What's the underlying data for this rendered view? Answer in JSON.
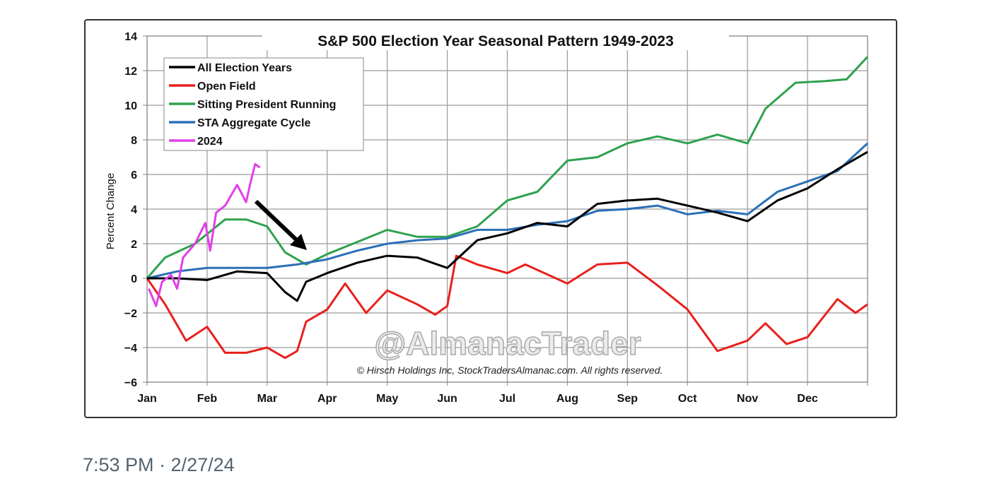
{
  "tweet": {
    "timestamp": "7:53 PM · 2/27/24"
  },
  "chart_data": {
    "type": "line",
    "title": "S&P 500 Election Year Seasonal Pattern 1949-2023",
    "xlabel": "",
    "ylabel": "Percent Change",
    "ylim": [
      -6,
      14
    ],
    "yticks": [
      "14",
      "12",
      "10",
      "8",
      "6",
      "4",
      "2",
      "0",
      "−2",
      "−4",
      "−6"
    ],
    "ytick_values": [
      14,
      12,
      10,
      8,
      6,
      4,
      2,
      0,
      -2,
      -4,
      -6
    ],
    "xlim": [
      0,
      12
    ],
    "xticks": [
      "Jan",
      "Feb",
      "Mar",
      "Apr",
      "May",
      "Jun",
      "Jul",
      "Aug",
      "Sep",
      "Oct",
      "Nov",
      "Dec"
    ],
    "grid": true,
    "legend_position": "top-left",
    "watermark": "@AlmanacTrader",
    "copyright": "© Hirsch Holdings Inc, StockTradersAlmanac.com. All rights reserved.",
    "series": [
      {
        "name": "All Election Years",
        "color": "#000000",
        "x": [
          0,
          0.5,
          1,
          1.5,
          2,
          2.3,
          2.5,
          2.65,
          3,
          3.5,
          4,
          4.5,
          5,
          5.5,
          6,
          6.5,
          7,
          7.5,
          8,
          8.5,
          9,
          9.5,
          10,
          10.5,
          11,
          11.5,
          12
        ],
        "y": [
          0,
          0,
          -0.1,
          0.4,
          0.3,
          -0.8,
          -1.3,
          -0.2,
          0.3,
          0.9,
          1.3,
          1.2,
          0.6,
          2.2,
          2.6,
          3.2,
          3.0,
          4.3,
          4.5,
          4.6,
          4.2,
          3.8,
          3.3,
          4.5,
          5.2,
          6.3,
          7.3
        ]
      },
      {
        "name": "Open Field",
        "color": "#e8201c",
        "x": [
          0,
          0.3,
          0.65,
          1,
          1.3,
          1.65,
          2,
          2.3,
          2.5,
          2.65,
          3,
          3.3,
          3.65,
          4,
          4.5,
          4.8,
          5,
          5.15,
          5.5,
          6,
          6.3,
          7,
          7.5,
          8,
          8.5,
          9,
          9.5,
          10,
          10.3,
          10.65,
          11,
          11.5,
          11.8,
          12
        ],
        "y": [
          0,
          -1.5,
          -3.6,
          -2.8,
          -4.3,
          -4.3,
          -4.0,
          -4.6,
          -4.2,
          -2.5,
          -1.8,
          -0.3,
          -2.0,
          -0.7,
          -1.5,
          -2.1,
          -1.6,
          1.3,
          0.8,
          0.3,
          0.8,
          -0.3,
          0.8,
          0.9,
          -0.4,
          -1.8,
          -4.2,
          -3.6,
          -2.6,
          -3.8,
          -3.4,
          -1.2,
          -2.0,
          -1.5
        ]
      },
      {
        "name": "Sitting President Running",
        "color": "#2ea24e",
        "x": [
          0,
          0.3,
          0.8,
          1.3,
          1.65,
          2,
          2.3,
          2.65,
          3,
          3.5,
          4,
          4.5,
          5,
          5.5,
          6,
          6.5,
          7,
          7.5,
          8,
          8.5,
          9,
          9.5,
          10,
          10.3,
          10.8,
          11.3,
          11.65,
          12
        ],
        "y": [
          0,
          1.2,
          2.0,
          3.4,
          3.4,
          3.0,
          1.5,
          0.8,
          1.4,
          2.1,
          2.8,
          2.4,
          2.4,
          3.0,
          4.5,
          5.0,
          6.8,
          7.0,
          7.8,
          8.2,
          7.8,
          8.3,
          7.8,
          9.8,
          11.3,
          11.4,
          11.5,
          12.8
        ]
      },
      {
        "name": "STA Aggregate Cycle",
        "color": "#2b70b8",
        "x": [
          0,
          0.5,
          1,
          1.5,
          2,
          2.5,
          3,
          3.5,
          4,
          4.5,
          5,
          5.5,
          6,
          6.5,
          7,
          7.5,
          8,
          8.5,
          9,
          9.5,
          10,
          10.5,
          11,
          11.5,
          12
        ],
        "y": [
          0,
          0.4,
          0.6,
          0.6,
          0.6,
          0.8,
          1.1,
          1.6,
          2.0,
          2.2,
          2.3,
          2.8,
          2.8,
          3.1,
          3.3,
          3.9,
          4.0,
          4.2,
          3.7,
          3.9,
          3.7,
          5.0,
          5.6,
          6.2,
          7.8
        ]
      },
      {
        "name": "2024",
        "color": "#e040e8",
        "x": [
          0.03,
          0.15,
          0.25,
          0.4,
          0.5,
          0.6,
          0.8,
          0.97,
          1.05,
          1.15,
          1.3,
          1.5,
          1.65,
          1.72,
          1.8,
          1.88
        ],
        "y": [
          -0.6,
          -1.6,
          -0.2,
          0.2,
          -0.6,
          1.2,
          2.0,
          3.2,
          1.6,
          3.8,
          4.2,
          5.4,
          4.4,
          5.5,
          6.6,
          6.4
        ]
      }
    ]
  }
}
